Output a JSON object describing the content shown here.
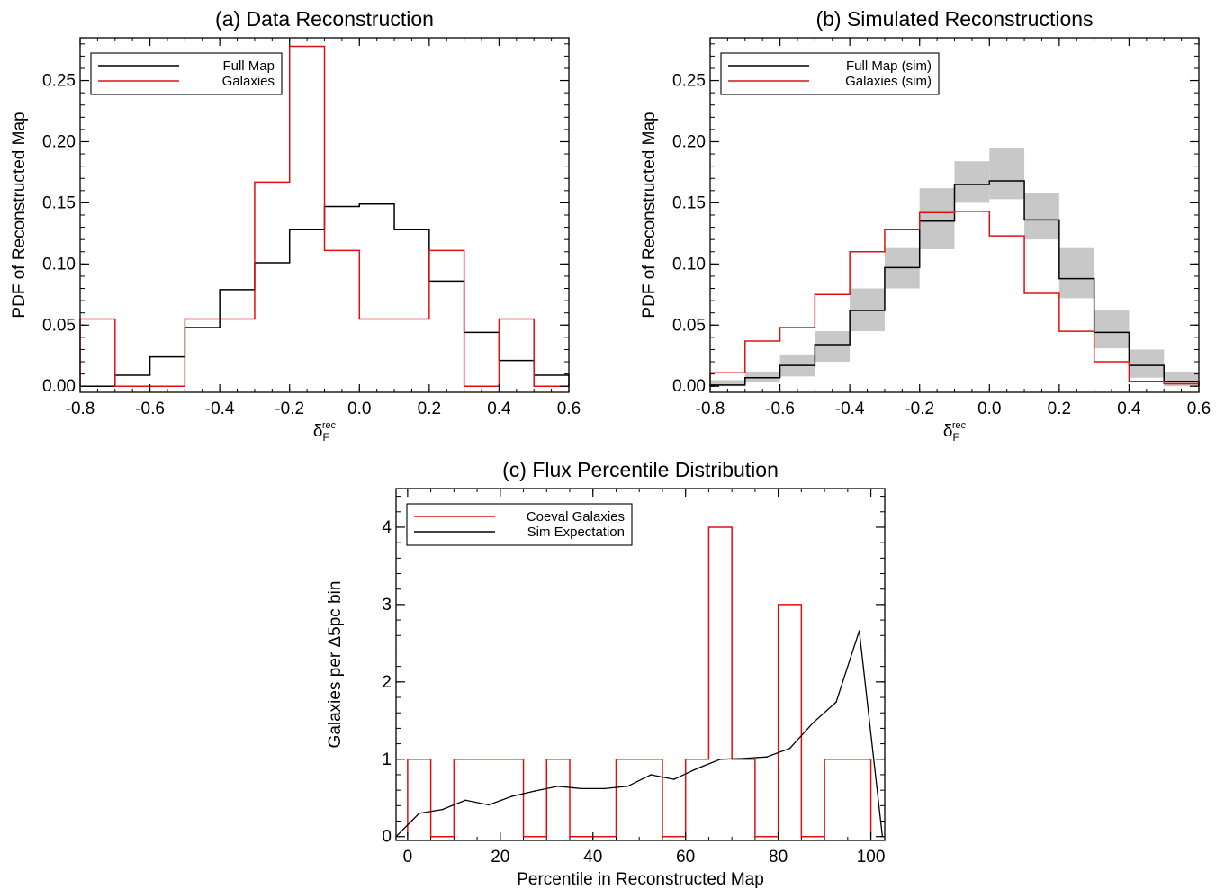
{
  "colors": {
    "black": "#000000",
    "red": "#e01010",
    "band": "#c8c8c8"
  },
  "chart_data": [
    {
      "type": "histogram",
      "title": "(a) Data Reconstruction",
      "xlabel": "δ",
      "xlabel_sub": "F",
      "xlabel_sup": "rec",
      "ylabel": "PDF of Reconstructed Map",
      "xlim": [
        -0.8,
        0.6
      ],
      "ylim": [
        -0.005,
        0.285
      ],
      "xticks": [
        -0.8,
        -0.6,
        -0.4,
        -0.2,
        0.0,
        0.2,
        0.4,
        0.6
      ],
      "xtick_labels": [
        "-0.8",
        "-0.6",
        "-0.4",
        "-0.2",
        "0.0",
        "0.2",
        "0.4",
        "0.6"
      ],
      "yticks": [
        0.0,
        0.05,
        0.1,
        0.15,
        0.2,
        0.25
      ],
      "ytick_labels": [
        "0.00",
        "0.05",
        "0.10",
        "0.15",
        "0.20",
        "0.25"
      ],
      "bin_edges": [
        -0.8,
        -0.7,
        -0.6,
        -0.5,
        -0.4,
        -0.3,
        -0.2,
        -0.1,
        0.0,
        0.1,
        0.2,
        0.3,
        0.4,
        0.5,
        0.6
      ],
      "legend_position": "top-left",
      "series": [
        {
          "name": "Full Map",
          "color": "black",
          "values": [
            0.0,
            0.009,
            0.024,
            0.048,
            0.079,
            0.101,
            0.128,
            0.147,
            0.149,
            0.128,
            0.086,
            0.044,
            0.021,
            0.009
          ]
        },
        {
          "name": "Galaxies",
          "color": "red",
          "values": [
            0.055,
            0.0,
            0.0,
            0.055,
            0.055,
            0.167,
            0.278,
            0.111,
            0.055,
            0.055,
            0.111,
            0.0,
            0.055,
            0.0
          ]
        }
      ]
    },
    {
      "type": "histogram",
      "title": "(b) Simulated Reconstructions",
      "xlabel": "δ",
      "xlabel_sub": "F",
      "xlabel_sup": "rec",
      "ylabel": "PDF of Reconstructed Map",
      "xlim": [
        -0.8,
        0.6
      ],
      "ylim": [
        -0.005,
        0.285
      ],
      "xticks": [
        -0.8,
        -0.6,
        -0.4,
        -0.2,
        0.0,
        0.2,
        0.4,
        0.6
      ],
      "xtick_labels": [
        "-0.8",
        "-0.6",
        "-0.4",
        "-0.2",
        "0.0",
        "0.2",
        "0.4",
        "0.6"
      ],
      "yticks": [
        0.0,
        0.05,
        0.1,
        0.15,
        0.2,
        0.25
      ],
      "ytick_labels": [
        "0.00",
        "0.05",
        "0.10",
        "0.15",
        "0.20",
        "0.25"
      ],
      "bin_edges": [
        -0.8,
        -0.7,
        -0.6,
        -0.5,
        -0.4,
        -0.3,
        -0.2,
        -0.1,
        0.0,
        0.1,
        0.2,
        0.3,
        0.4,
        0.5,
        0.6
      ],
      "legend_position": "top-left",
      "band": {
        "lower": [
          0.0,
          0.003,
          0.008,
          0.02,
          0.045,
          0.08,
          0.112,
          0.15,
          0.153,
          0.12,
          0.072,
          0.031,
          0.007,
          0.0
        ],
        "upper": [
          0.005,
          0.012,
          0.026,
          0.045,
          0.08,
          0.113,
          0.162,
          0.184,
          0.195,
          0.158,
          0.113,
          0.062,
          0.03,
          0.012
        ]
      },
      "series": [
        {
          "name": "Full Map (sim)",
          "color": "black",
          "values": [
            0.001,
            0.007,
            0.017,
            0.034,
            0.062,
            0.097,
            0.135,
            0.165,
            0.168,
            0.136,
            0.088,
            0.044,
            0.017,
            0.004
          ]
        },
        {
          "name": "Galaxies (sim)",
          "color": "red",
          "values": [
            0.011,
            0.037,
            0.048,
            0.075,
            0.11,
            0.128,
            0.142,
            0.143,
            0.123,
            0.076,
            0.045,
            0.02,
            0.004,
            0.002
          ]
        }
      ]
    },
    {
      "type": "histogram",
      "title": "(c) Flux Percentile Distribution",
      "xlabel": "Percentile in Reconstructed Map",
      "ylabel": "Galaxies per Δ5pc bin",
      "xlim": [
        -2.5,
        103
      ],
      "ylim": [
        -0.05,
        4.5
      ],
      "xticks": [
        0,
        20,
        40,
        60,
        80,
        100
      ],
      "xtick_labels": [
        "0",
        "20",
        "40",
        "60",
        "80",
        "100"
      ],
      "yticks": [
        0,
        1,
        2,
        3,
        4
      ],
      "ytick_labels": [
        "0",
        "1",
        "2",
        "3",
        "4"
      ],
      "bin_edges": [
        0,
        5,
        10,
        15,
        20,
        25,
        30,
        35,
        40,
        45,
        50,
        55,
        60,
        65,
        70,
        75,
        80,
        85,
        90,
        95,
        100
      ],
      "legend_position": "top-left",
      "series": [
        {
          "name": "Coeval Galaxies",
          "color": "red",
          "kind": "histogram",
          "values": [
            1,
            0,
            1,
            1,
            1,
            0,
            1,
            0,
            0,
            1,
            1,
            0,
            1,
            4,
            1,
            0,
            3,
            0,
            1,
            1
          ]
        },
        {
          "name": "Sim Expectation",
          "color": "black",
          "kind": "line",
          "x": [
            -2.5,
            2.5,
            7.5,
            12.5,
            17.5,
            22.5,
            27.5,
            32.5,
            37.5,
            42.5,
            47.5,
            52.5,
            57.5,
            62.5,
            67.5,
            72.5,
            77.5,
            82.5,
            87.5,
            92.5,
            97.5,
            102.5
          ],
          "y": [
            0.0,
            0.3,
            0.35,
            0.47,
            0.41,
            0.52,
            0.59,
            0.65,
            0.62,
            0.62,
            0.65,
            0.8,
            0.74,
            0.88,
            1.0,
            1.01,
            1.03,
            1.14,
            1.47,
            1.74,
            2.66,
            0.0
          ]
        }
      ]
    }
  ]
}
